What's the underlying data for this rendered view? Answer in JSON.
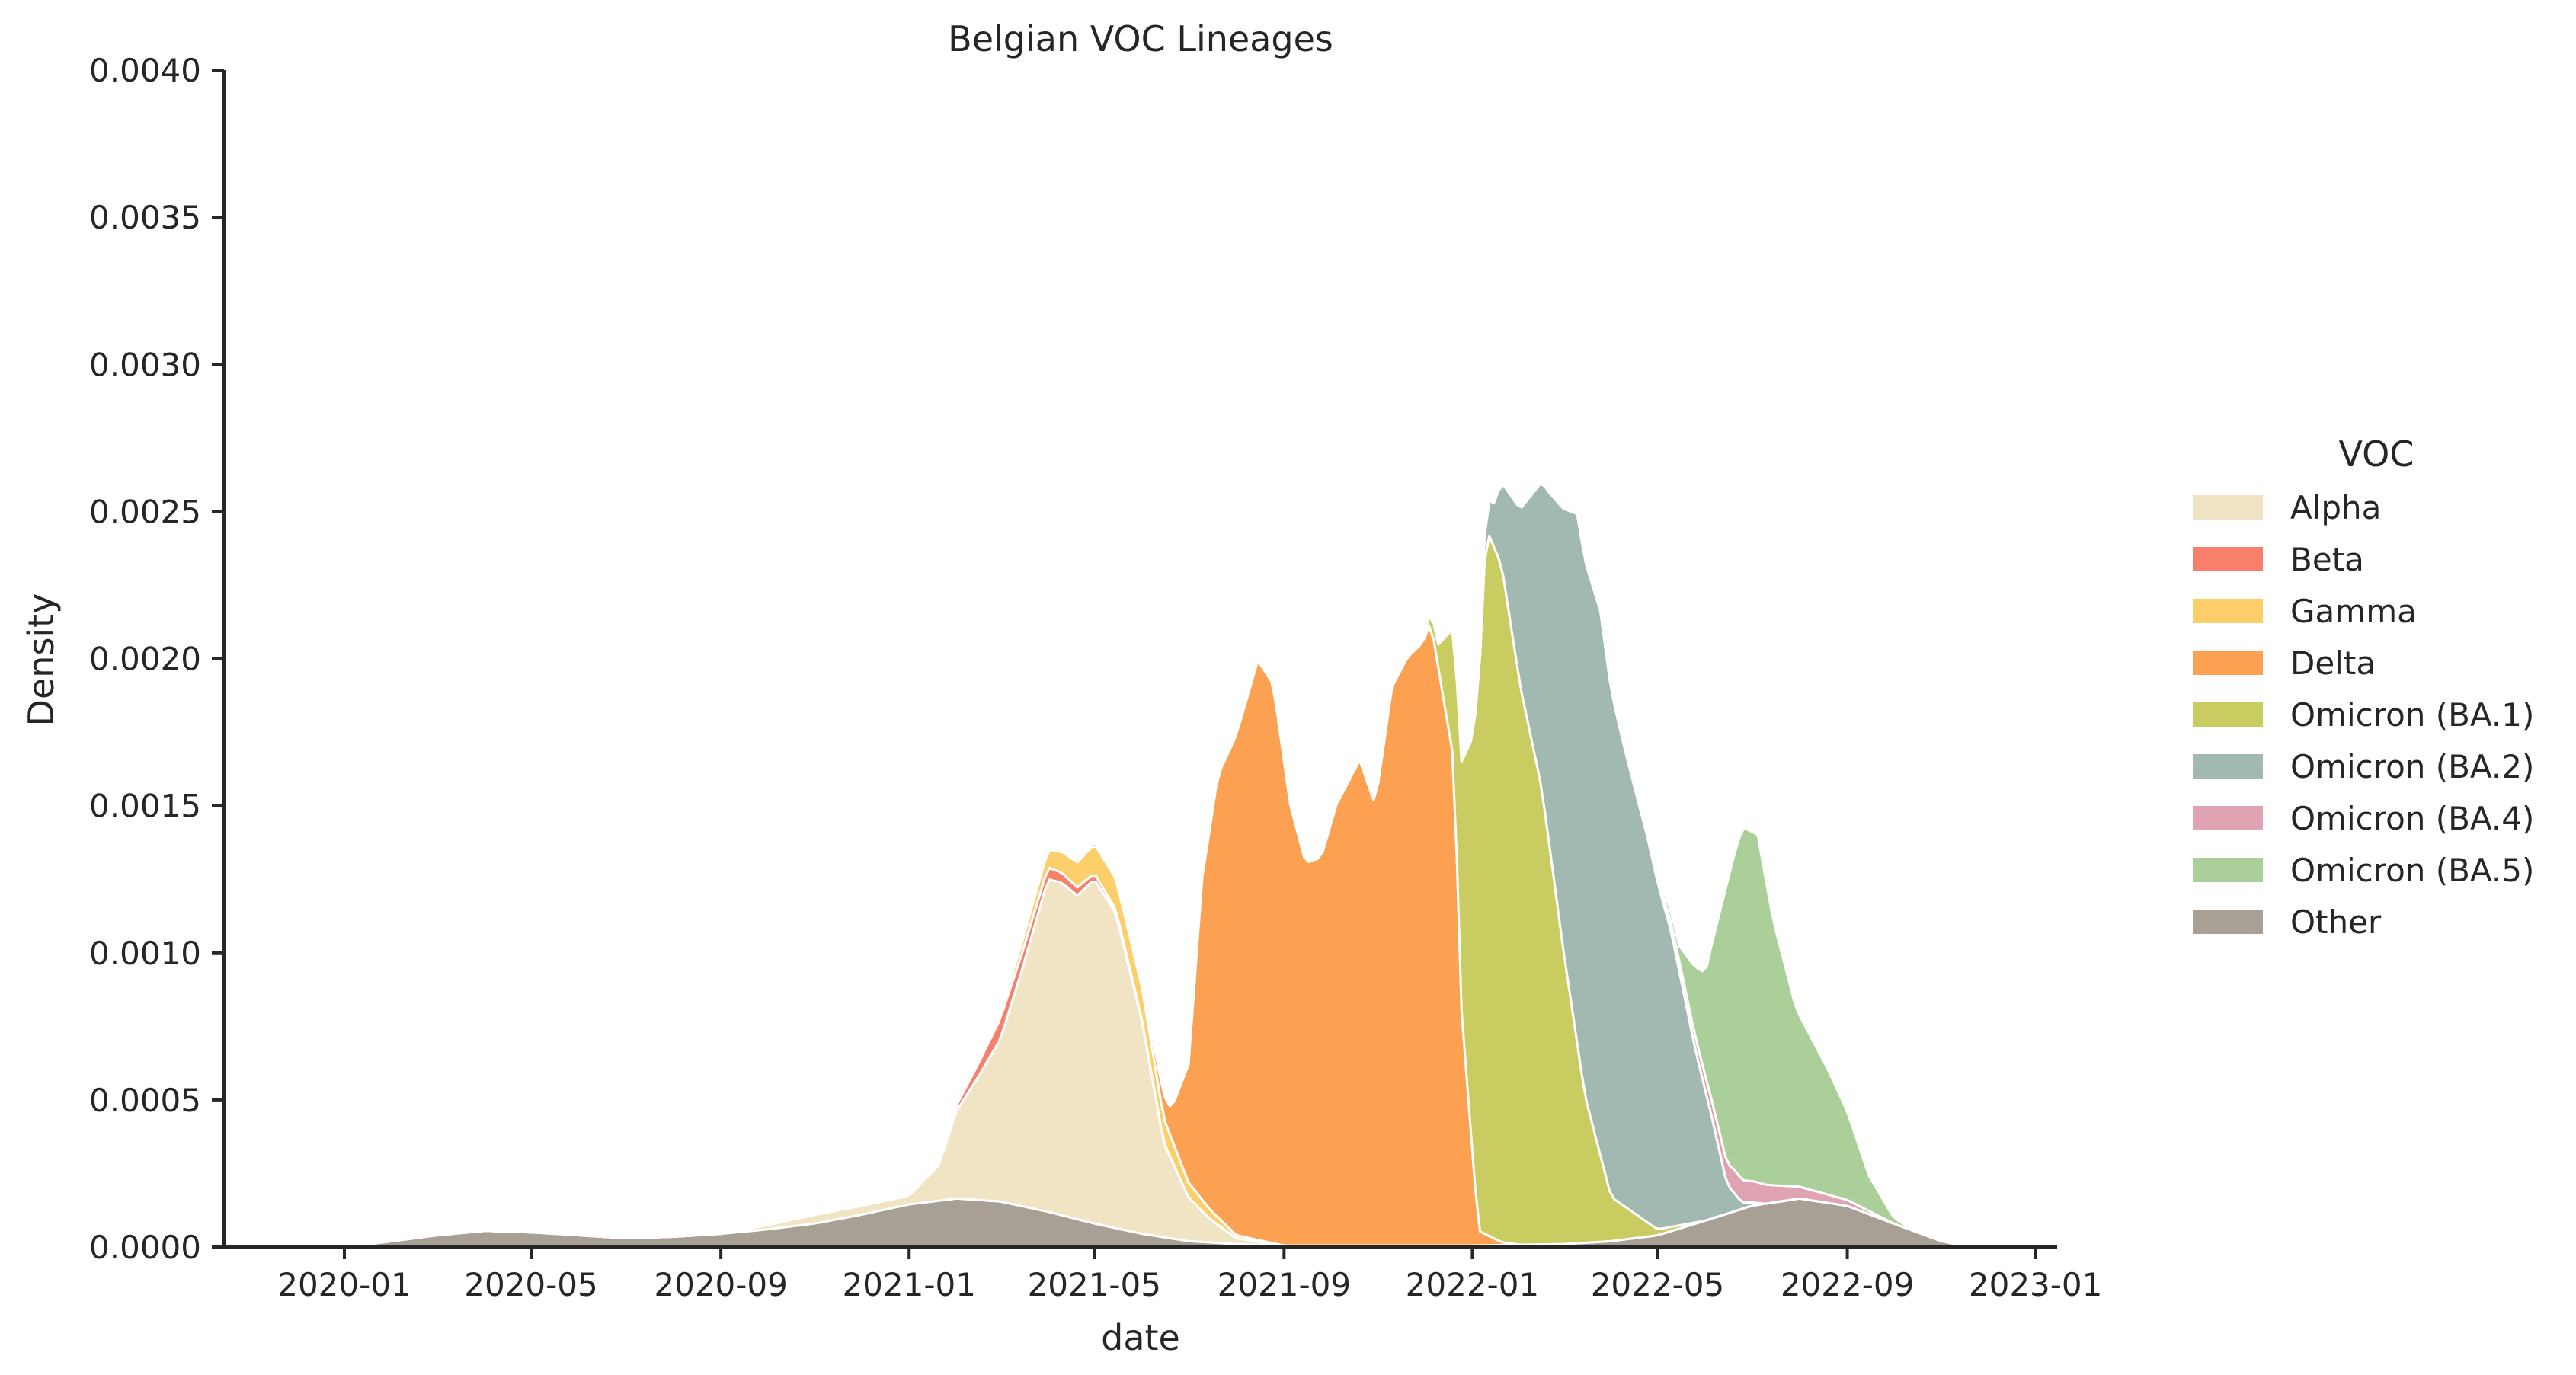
{
  "chart_data": {
    "type": "area",
    "stacked": true,
    "title": "Belgian VOC Lineages",
    "xlabel": "date",
    "ylabel": "Density",
    "x_ticks": [
      "2020-01",
      "2020-05",
      "2020-09",
      "2021-01",
      "2021-05",
      "2021-09",
      "2022-01",
      "2022-05",
      "2022-09",
      "2023-01"
    ],
    "y_ticks": [
      "0.0000",
      "0.0005",
      "0.0010",
      "0.0015",
      "0.0020",
      "0.0025",
      "0.0030",
      "0.0035",
      "0.0040"
    ],
    "xlim": [
      "2019-10-15",
      "2023-01-15"
    ],
    "ylim": [
      0,
      0.004
    ],
    "legend": {
      "title": "VOC",
      "placement": "right"
    },
    "grid": false,
    "series": [
      {
        "name": "Other",
        "color": "#a8a095",
        "points": [
          [
            "2020-01-01",
            0
          ],
          [
            "2020-02-01",
            2e-05
          ],
          [
            "2020-03-01",
            4e-05
          ],
          [
            "2020-04-01",
            5.5e-05
          ],
          [
            "2020-05-01",
            5e-05
          ],
          [
            "2020-06-01",
            4e-05
          ],
          [
            "2020-07-01",
            3e-05
          ],
          [
            "2020-08-01",
            3.5e-05
          ],
          [
            "2020-09-01",
            4.5e-05
          ],
          [
            "2020-10-01",
            6e-05
          ],
          [
            "2020-11-01",
            8e-05
          ],
          [
            "2020-12-01",
            0.00011
          ],
          [
            "2021-01-01",
            0.000145
          ],
          [
            "2021-02-01",
            0.000165
          ],
          [
            "2021-03-01",
            0.000155
          ],
          [
            "2021-04-01",
            0.00012
          ],
          [
            "2021-05-01",
            8e-05
          ],
          [
            "2021-06-01",
            4.5e-05
          ],
          [
            "2021-07-01",
            2e-05
          ],
          [
            "2021-08-01",
            1e-05
          ],
          [
            "2021-09-01",
            5e-06
          ],
          [
            "2021-11-01",
            5e-06
          ],
          [
            "2022-01-01",
            5e-06
          ],
          [
            "2022-03-01",
            1e-05
          ],
          [
            "2022-04-01",
            2e-05
          ],
          [
            "2022-05-01",
            4e-05
          ],
          [
            "2022-06-01",
            9e-05
          ],
          [
            "2022-07-01",
            0.00014
          ],
          [
            "2022-08-01",
            0.000165
          ],
          [
            "2022-09-01",
            0.00014
          ],
          [
            "2022-10-01",
            8e-05
          ],
          [
            "2022-11-01",
            2e-05
          ],
          [
            "2022-11-20",
            0
          ]
        ]
      },
      {
        "name": "Alpha",
        "color": "#f0e4c4",
        "points": [
          [
            "2020-09-01",
            0
          ],
          [
            "2020-11-01",
            3e-05
          ],
          [
            "2021-01-01",
            3e-05
          ],
          [
            "2021-01-20",
            0.00012
          ],
          [
            "2021-02-01",
            0.0003
          ],
          [
            "2021-02-15",
            0.00042
          ],
          [
            "2021-03-01",
            0.00055
          ],
          [
            "2021-03-15",
            0.0008
          ],
          [
            "2021-04-01",
            0.00113
          ],
          [
            "2021-04-10",
            0.00113
          ],
          [
            "2021-04-20",
            0.0011
          ],
          [
            "2021-05-01",
            0.00117
          ],
          [
            "2021-05-15",
            0.00107
          ],
          [
            "2021-06-01",
            0.00072
          ],
          [
            "2021-06-15",
            0.00032
          ],
          [
            "2021-07-01",
            0.00015
          ],
          [
            "2021-07-15",
            8e-05
          ],
          [
            "2021-08-01",
            2e-05
          ],
          [
            "2021-09-01",
            0
          ]
        ]
      },
      {
        "name": "Beta",
        "color": "#f8806a",
        "points": [
          [
            "2021-01-01",
            0
          ],
          [
            "2021-02-01",
            2e-05
          ],
          [
            "2021-03-01",
            7e-05
          ],
          [
            "2021-04-01",
            4e-05
          ],
          [
            "2021-05-01",
            2e-05
          ],
          [
            "2021-06-01",
            5e-06
          ],
          [
            "2021-07-01",
            0
          ]
        ]
      },
      {
        "name": "Gamma",
        "color": "#fccf6a",
        "points": [
          [
            "2021-02-01",
            0
          ],
          [
            "2021-03-01",
            2e-05
          ],
          [
            "2021-04-01",
            6e-05
          ],
          [
            "2021-05-01",
            0.0001
          ],
          [
            "2021-06-01",
            0.00011
          ],
          [
            "2021-07-01",
            5e-05
          ],
          [
            "2021-08-01",
            1e-05
          ],
          [
            "2021-09-01",
            0
          ]
        ]
      },
      {
        "name": "Delta",
        "color": "#fca152",
        "points": [
          [
            "2021-04-01",
            0
          ],
          [
            "2021-06-01",
            2e-05
          ],
          [
            "2021-06-20",
            0.0001
          ],
          [
            "2021-07-01",
            0.0004
          ],
          [
            "2021-07-10",
            0.0011
          ],
          [
            "2021-07-20",
            0.0015
          ],
          [
            "2021-08-01",
            0.0017
          ],
          [
            "2021-08-15",
            0.00197
          ],
          [
            "2021-08-25",
            0.0019
          ],
          [
            "2021-09-05",
            0.0015
          ],
          [
            "2021-09-15",
            0.0013
          ],
          [
            "2021-09-25",
            0.00132
          ],
          [
            "2021-10-05",
            0.0015
          ],
          [
            "2021-10-20",
            0.00165
          ],
          [
            "2021-10-30",
            0.0015
          ],
          [
            "2021-11-10",
            0.0019
          ],
          [
            "2021-11-20",
            0.002
          ],
          [
            "2021-11-30",
            0.00205
          ],
          [
            "2021-12-05",
            0.00212
          ],
          [
            "2021-12-12",
            0.0019
          ],
          [
            "2021-12-20",
            0.00165
          ],
          [
            "2021-12-25",
            0.0008
          ],
          [
            "2022-01-05",
            5e-05
          ],
          [
            "2022-01-20",
            1e-05
          ],
          [
            "2022-02-01",
            0
          ]
        ]
      },
      {
        "name": "Omicron (BA.1)",
        "color": "#c9cc60",
        "points": [
          [
            "2021-11-20",
            0
          ],
          [
            "2021-12-01",
            1e-05
          ],
          [
            "2021-12-10",
            8e-05
          ],
          [
            "2021-12-20",
            0.00045
          ],
          [
            "2022-01-01",
            0.0014
          ],
          [
            "2022-01-10",
            0.0024
          ],
          [
            "2022-01-20",
            0.0023
          ],
          [
            "2022-02-01",
            0.0019
          ],
          [
            "2022-02-15",
            0.00155
          ],
          [
            "2022-03-01",
            0.001
          ],
          [
            "2022-03-15",
            0.0005
          ],
          [
            "2022-04-01",
            0.00015
          ],
          [
            "2022-05-01",
            2e-05
          ],
          [
            "2022-06-01",
            0
          ]
        ]
      },
      {
        "name": "Omicron (BA.2)",
        "color": "#a1b9b0",
        "points": [
          [
            "2022-01-01",
            0
          ],
          [
            "2022-01-15",
            0.00015
          ],
          [
            "2022-02-01",
            0.0006
          ],
          [
            "2022-02-20",
            0.0012
          ],
          [
            "2022-03-10",
            0.0018
          ],
          [
            "2022-03-25",
            0.00185
          ],
          [
            "2022-04-10",
            0.00155
          ],
          [
            "2022-04-25",
            0.0013
          ],
          [
            "2022-05-10",
            0.001
          ],
          [
            "2022-05-25",
            0.0006
          ],
          [
            "2022-06-05",
            0.00035
          ],
          [
            "2022-06-15",
            0.0001
          ],
          [
            "2022-06-25",
            2e-05
          ],
          [
            "2022-07-10",
            0
          ]
        ]
      },
      {
        "name": "Omicron (BA.4)",
        "color": "#e0a3b2",
        "points": [
          [
            "2022-04-20",
            0
          ],
          [
            "2022-05-10",
            3e-05
          ],
          [
            "2022-06-01",
            5e-05
          ],
          [
            "2022-06-20",
            8e-05
          ],
          [
            "2022-07-05",
            7e-05
          ],
          [
            "2022-08-01",
            4e-05
          ],
          [
            "2022-09-01",
            2e-05
          ],
          [
            "2022-10-01",
            0
          ]
        ]
      },
      {
        "name": "Omicron (BA.5)",
        "color": "#aacf98",
        "points": [
          [
            "2022-04-25",
            0
          ],
          [
            "2022-05-15",
            5e-05
          ],
          [
            "2022-06-01",
            0.00035
          ],
          [
            "2022-06-15",
            0.00095
          ],
          [
            "2022-06-25",
            0.0012
          ],
          [
            "2022-07-05",
            0.00118
          ],
          [
            "2022-07-15",
            0.0009
          ],
          [
            "2022-07-30",
            0.0006
          ],
          [
            "2022-08-20",
            0.00042
          ],
          [
            "2022-09-01",
            0.0003
          ],
          [
            "2022-09-15",
            0.00012
          ],
          [
            "2022-10-01",
            2e-05
          ],
          [
            "2022-10-15",
            0
          ]
        ]
      }
    ],
    "legend_order": [
      "Alpha",
      "Beta",
      "Gamma",
      "Delta",
      "Omicron (BA.1)",
      "Omicron (BA.2)",
      "Omicron (BA.4)",
      "Omicron (BA.5)",
      "Other"
    ]
  }
}
